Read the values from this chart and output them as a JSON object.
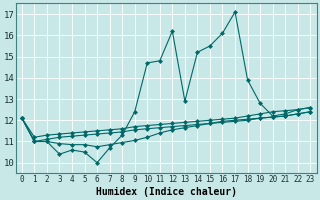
{
  "xlabel": "Humidex (Indice chaleur)",
  "bg_color": "#c8e8e8",
  "grid_color": "#a8d0d0",
  "line_color": "#006868",
  "xlim": [
    -0.5,
    23.5
  ],
  "ylim": [
    9.5,
    17.5
  ],
  "xticks": [
    0,
    1,
    2,
    3,
    4,
    5,
    6,
    7,
    8,
    9,
    10,
    11,
    12,
    13,
    14,
    15,
    16,
    17,
    18,
    19,
    20,
    21,
    22,
    23
  ],
  "yticks": [
    10,
    11,
    12,
    13,
    14,
    15,
    16,
    17
  ],
  "line1_x": [
    0,
    1,
    2,
    3,
    4,
    5,
    6,
    7,
    8,
    9,
    10,
    11,
    12,
    13,
    14,
    15,
    16,
    17,
    18,
    19,
    20,
    21,
    22,
    23
  ],
  "line1_y": [
    12.1,
    11.0,
    11.0,
    10.4,
    10.6,
    10.5,
    10.0,
    10.7,
    11.3,
    12.4,
    14.7,
    14.8,
    16.2,
    12.9,
    15.2,
    15.5,
    16.1,
    17.1,
    13.9,
    12.8,
    12.2,
    12.3,
    12.5,
    12.6
  ],
  "line2_x": [
    0,
    1,
    2,
    3,
    4,
    5,
    6,
    7,
    8,
    9,
    10,
    11,
    12,
    13,
    14,
    15,
    16,
    17,
    18,
    19,
    20,
    21,
    22,
    23
  ],
  "line2_y": [
    12.1,
    11.2,
    11.3,
    11.35,
    11.4,
    11.45,
    11.5,
    11.55,
    11.6,
    11.7,
    11.75,
    11.8,
    11.85,
    11.9,
    11.95,
    12.0,
    12.05,
    12.1,
    12.2,
    12.3,
    12.4,
    12.45,
    12.5,
    12.6
  ],
  "line3_x": [
    0,
    1,
    2,
    3,
    4,
    5,
    6,
    7,
    8,
    9,
    10,
    11,
    12,
    13,
    14,
    15,
    16,
    17,
    18,
    19,
    20,
    21,
    22,
    23
  ],
  "line3_y": [
    12.1,
    11.0,
    11.1,
    11.2,
    11.25,
    11.3,
    11.35,
    11.4,
    11.45,
    11.55,
    11.6,
    11.65,
    11.7,
    11.75,
    11.8,
    11.85,
    11.9,
    11.95,
    12.0,
    12.1,
    12.15,
    12.2,
    12.3,
    12.4
  ],
  "line4_x": [
    0,
    1,
    2,
    3,
    4,
    5,
    6,
    7,
    8,
    9,
    10,
    11,
    12,
    13,
    14,
    15,
    16,
    17,
    18,
    19,
    20,
    21,
    22,
    23
  ],
  "line4_y": [
    12.1,
    11.0,
    11.0,
    10.9,
    10.85,
    10.85,
    10.75,
    10.85,
    10.95,
    11.05,
    11.2,
    11.4,
    11.55,
    11.65,
    11.75,
    11.85,
    11.95,
    12.0,
    12.05,
    12.1,
    12.15,
    12.2,
    12.3,
    12.4
  ]
}
